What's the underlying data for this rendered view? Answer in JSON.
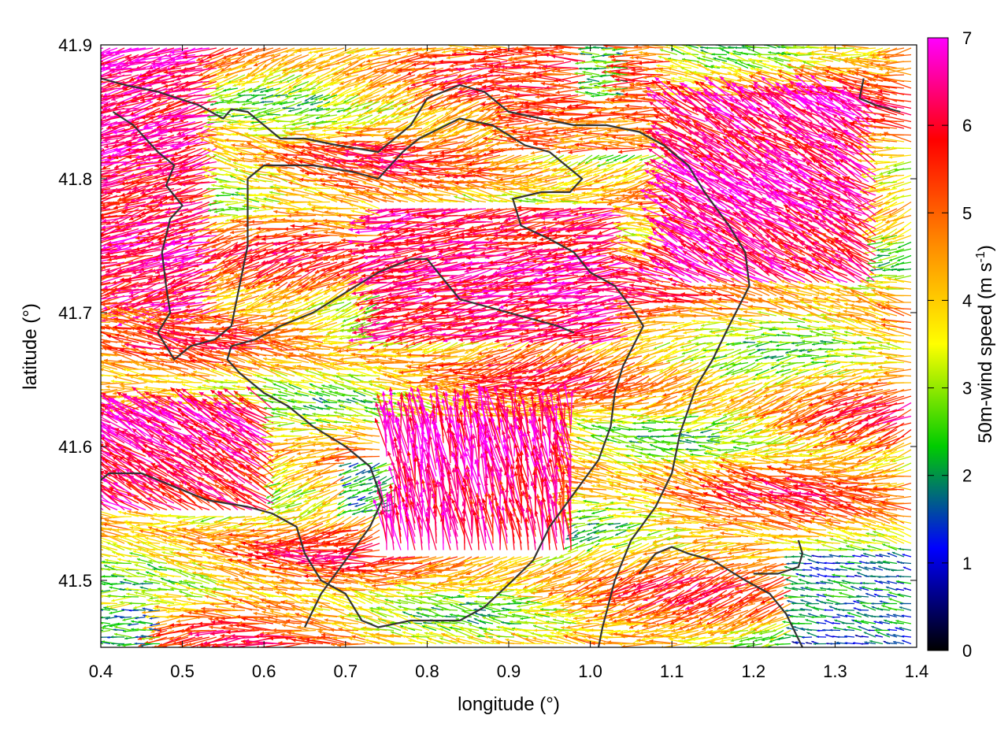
{
  "chart_data": {
    "type": "vector-field",
    "xlabel": "longitude (°)",
    "ylabel": "latitude (°)",
    "colorbar_label": "50m-wind speed (m s",
    "colorbar_label_sup": "-1",
    "colorbar_label_end": ")",
    "xlim": [
      0.4,
      1.4
    ],
    "ylim": [
      41.45,
      41.9
    ],
    "xticks": [
      0.4,
      0.5,
      0.6,
      0.7,
      0.8,
      0.9,
      1.0,
      1.1,
      1.2,
      1.3,
      1.4
    ],
    "xtick_labels": [
      "0.4",
      "0.5",
      "0.6",
      "0.7",
      "0.8",
      "0.9",
      "1.0",
      "1.1",
      "1.2",
      "1.3",
      "1.4"
    ],
    "yticks": [
      41.5,
      41.6,
      41.7,
      41.8,
      41.9
    ],
    "ytick_labels": [
      "41.5",
      "41.6",
      "41.7",
      "41.8",
      "41.9"
    ],
    "colorbar_ticks": [
      0,
      1,
      2,
      3,
      4,
      5,
      6,
      7
    ],
    "colorbar_tick_labels": [
      "0",
      "1",
      "2",
      "3",
      "4",
      "5",
      "6",
      "7"
    ],
    "colorbar_range": [
      0,
      7
    ],
    "colormap": [
      "#000000",
      "#0000ff",
      "#00cc00",
      "#ffff00",
      "#ff8800",
      "#ff0000",
      "#ff00ff"
    ],
    "contour_color": "#333333",
    "grid": false,
    "region_speeds": [
      {
        "lon": [
          0.4,
          0.55
        ],
        "lat": [
          41.7,
          41.9
        ],
        "speed": 7.0,
        "direction_deg": 195
      },
      {
        "lon": [
          0.75,
          1.05
        ],
        "lat": [
          41.68,
          41.78
        ],
        "speed": 7.0,
        "direction_deg": 190
      },
      {
        "lon": [
          1.1,
          1.35
        ],
        "lat": [
          41.72,
          41.86
        ],
        "speed": 7.0,
        "direction_deg": 150
      },
      {
        "lon": [
          0.4,
          0.62
        ],
        "lat": [
          41.55,
          41.63
        ],
        "speed": 7.0,
        "direction_deg": 150
      },
      {
        "lon": [
          0.75,
          0.98
        ],
        "lat": [
          41.52,
          41.62
        ],
        "speed": 7.0,
        "direction_deg": 100
      },
      {
        "lon": [
          0.7,
          0.76
        ],
        "lat": [
          41.55,
          41.59
        ],
        "speed": 1.2,
        "direction_deg": 200
      },
      {
        "lon": [
          1.25,
          1.4
        ],
        "lat": [
          41.45,
          41.52
        ],
        "speed": 1.0,
        "direction_deg": 170
      },
      {
        "lon": [
          0.4,
          0.48
        ],
        "lat": [
          41.45,
          41.48
        ],
        "speed": 1.3,
        "direction_deg": 180
      },
      {
        "lon": [
          0.9,
          1.1
        ],
        "lat": [
          41.82,
          41.9
        ],
        "speed": 5.5,
        "direction_deg": 180
      },
      {
        "lon": [
          1.0,
          1.05
        ],
        "lat": [
          41.86,
          41.9
        ],
        "speed": 1.5,
        "direction_deg": 180
      }
    ],
    "contours": [
      [
        [
          0.4,
          41.875
        ],
        [
          0.43,
          41.87
        ],
        [
          0.47,
          41.865
        ],
        [
          0.52,
          41.855
        ],
        [
          0.55,
          41.845
        ],
        [
          0.56,
          41.852
        ],
        [
          0.58,
          41.85
        ],
        [
          0.6,
          41.84
        ],
        [
          0.62,
          41.83
        ],
        [
          0.65,
          41.83
        ],
        [
          0.69,
          41.825
        ],
        [
          0.74,
          41.82
        ],
        [
          0.78,
          41.84
        ],
        [
          0.8,
          41.86
        ],
        [
          0.84,
          41.87
        ],
        [
          0.87,
          41.865
        ],
        [
          0.9,
          41.85
        ],
        [
          0.94,
          41.845
        ],
        [
          0.98,
          41.84
        ],
        [
          1.02,
          41.84
        ],
        [
          1.06,
          41.835
        ],
        [
          1.09,
          41.825
        ],
        [
          1.12,
          41.81
        ],
        [
          1.14,
          41.79
        ],
        [
          1.17,
          41.765
        ],
        [
          1.19,
          41.745
        ],
        [
          1.195,
          41.72
        ],
        [
          1.17,
          41.69
        ],
        [
          1.15,
          41.665
        ],
        [
          1.13,
          41.645
        ],
        [
          1.11,
          41.61
        ],
        [
          1.1,
          41.58
        ],
        [
          1.08,
          41.555
        ],
        [
          1.05,
          41.53
        ],
        [
          1.03,
          41.5
        ],
        [
          1.015,
          41.465
        ],
        [
          1.01,
          41.45
        ]
      ],
      [
        [
          0.415,
          41.85
        ],
        [
          0.44,
          41.84
        ],
        [
          0.47,
          41.82
        ],
        [
          0.49,
          41.81
        ],
        [
          0.48,
          41.795
        ],
        [
          0.5,
          41.78
        ],
        [
          0.485,
          41.77
        ],
        [
          0.475,
          41.745
        ],
        [
          0.48,
          41.72
        ],
        [
          0.485,
          41.7
        ],
        [
          0.47,
          41.685
        ],
        [
          0.49,
          41.665
        ],
        [
          0.51,
          41.675
        ],
        [
          0.54,
          41.68
        ],
        [
          0.56,
          41.69
        ],
        [
          0.58,
          41.75
        ],
        [
          0.58,
          41.8
        ],
        [
          0.6,
          41.81
        ],
        [
          0.66,
          41.81
        ],
        [
          0.71,
          41.805
        ],
        [
          0.74,
          41.8
        ],
        [
          0.77,
          41.82
        ],
        [
          0.79,
          41.83
        ],
        [
          0.84,
          41.845
        ],
        [
          0.88,
          41.84
        ],
        [
          0.92,
          41.825
        ],
        [
          0.95,
          41.82
        ],
        [
          0.99,
          41.8
        ],
        [
          0.975,
          41.79
        ],
        [
          0.94,
          41.79
        ],
        [
          0.905,
          41.785
        ],
        [
          0.915,
          41.765
        ],
        [
          0.95,
          41.755
        ],
        [
          0.98,
          41.745
        ],
        [
          1.0,
          41.73
        ],
        [
          1.03,
          41.72
        ],
        [
          1.055,
          41.7
        ],
        [
          1.065,
          41.69
        ],
        [
          1.04,
          41.66
        ],
        [
          1.03,
          41.64
        ],
        [
          1.025,
          41.615
        ],
        [
          1.01,
          41.59
        ],
        [
          0.98,
          41.565
        ],
        [
          0.95,
          41.54
        ],
        [
          0.93,
          41.515
        ],
        [
          0.905,
          41.5
        ],
        [
          0.87,
          41.48
        ],
        [
          0.84,
          41.47
        ],
        [
          0.78,
          41.47
        ],
        [
          0.74,
          41.465
        ],
        [
          0.72,
          41.47
        ],
        [
          0.7,
          41.49
        ],
        [
          0.67,
          41.5
        ],
        [
          0.65,
          41.52
        ],
        [
          0.64,
          41.54
        ],
        [
          0.61,
          41.55
        ],
        [
          0.58,
          41.555
        ],
        [
          0.53,
          41.56
        ],
        [
          0.49,
          41.57
        ],
        [
          0.45,
          41.58
        ],
        [
          0.41,
          41.58
        ],
        [
          0.4,
          41.575
        ]
      ],
      [
        [
          0.65,
          41.465
        ],
        [
          0.67,
          41.49
        ],
        [
          0.7,
          41.515
        ],
        [
          0.73,
          41.54
        ],
        [
          0.745,
          41.56
        ],
        [
          0.73,
          41.585
        ],
        [
          0.7,
          41.6
        ],
        [
          0.66,
          41.615
        ],
        [
          0.63,
          41.63
        ],
        [
          0.6,
          41.64
        ],
        [
          0.57,
          41.655
        ],
        [
          0.555,
          41.665
        ],
        [
          0.56,
          41.675
        ],
        [
          0.59,
          41.68
        ],
        [
          0.62,
          41.69
        ],
        [
          0.66,
          41.7
        ],
        [
          0.7,
          41.715
        ],
        [
          0.74,
          41.73
        ],
        [
          0.78,
          41.74
        ],
        [
          0.8,
          41.74
        ],
        [
          0.82,
          41.725
        ],
        [
          0.84,
          41.71
        ],
        [
          0.87,
          41.705
        ],
        [
          0.9,
          41.7
        ],
        [
          0.93,
          41.695
        ],
        [
          0.96,
          41.69
        ],
        [
          0.98,
          41.685
        ]
      ],
      [
        [
          1.26,
          41.45
        ],
        [
          1.24,
          41.475
        ],
        [
          1.22,
          41.49
        ],
        [
          1.19,
          41.5
        ],
        [
          1.15,
          41.515
        ],
        [
          1.12,
          41.52
        ],
        [
          1.1,
          41.525
        ],
        [
          1.08,
          41.52
        ],
        [
          1.06,
          41.505
        ]
      ],
      [
        [
          1.2,
          41.505
        ],
        [
          1.23,
          41.505
        ],
        [
          1.255,
          41.51
        ],
        [
          1.26,
          41.52
        ],
        [
          1.255,
          41.53
        ]
      ],
      [
        [
          1.335,
          41.875
        ],
        [
          1.33,
          41.86
        ],
        [
          1.35,
          41.855
        ],
        [
          1.38,
          41.85
        ]
      ]
    ]
  }
}
